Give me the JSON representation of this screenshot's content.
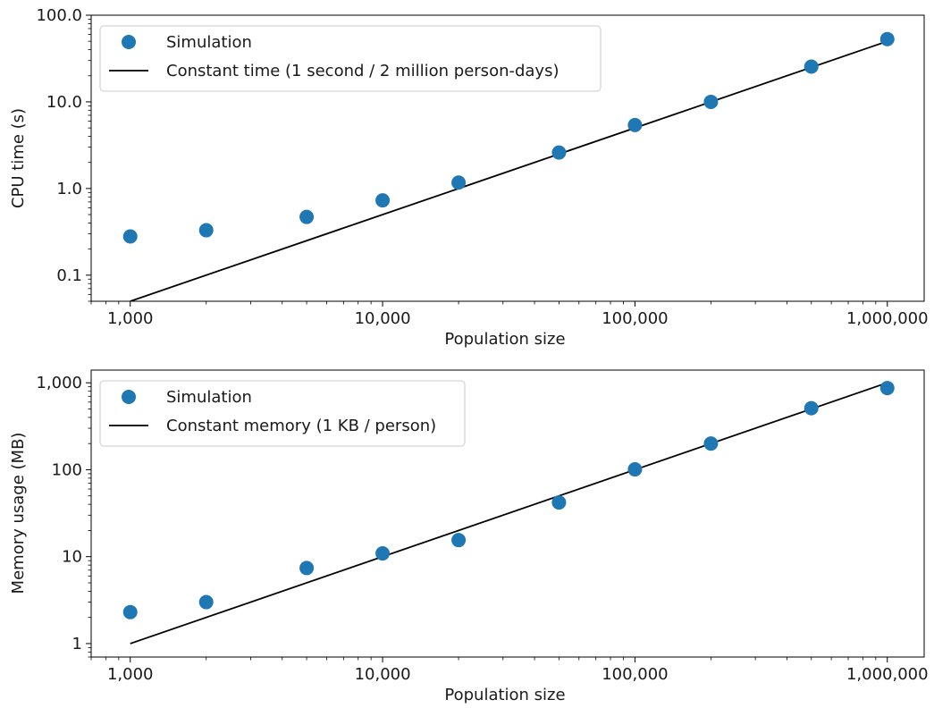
{
  "chart_data": [
    {
      "type": "scatter",
      "title": "",
      "xlabel": "Population size",
      "ylabel": "CPU time (s)",
      "xscale": "log",
      "yscale": "log",
      "xlim": [
        700,
        1400000
      ],
      "ylim": [
        0.05,
        100
      ],
      "xticks": [
        1000,
        10000,
        100000,
        1000000
      ],
      "xtick_labels": [
        "1,000",
        "10,000",
        "100,000",
        "1,000,000"
      ],
      "yticks": [
        0.1,
        1,
        10,
        100
      ],
      "ytick_labels": [
        "0.1",
        "1.0",
        "10.0",
        "100.0"
      ],
      "grid": false,
      "legend_position": "top-left",
      "series": [
        {
          "name": "Simulation",
          "kind": "markers",
          "color": "#1f77b4",
          "x": [
            1000,
            2000,
            5000,
            10000,
            20000,
            50000,
            100000,
            200000,
            500000,
            1000000
          ],
          "y": [
            0.28,
            0.33,
            0.47,
            0.73,
            1.17,
            2.6,
            5.4,
            10.0,
            25.5,
            53
          ]
        },
        {
          "name": "Constant time (1 second / 2 million person-days)",
          "kind": "line",
          "color": "#000000",
          "x": [
            1000,
            1000000
          ],
          "y": [
            0.05,
            50
          ]
        }
      ]
    },
    {
      "type": "scatter",
      "title": "",
      "xlabel": "Population size",
      "ylabel": "Memory usage (MB)",
      "xscale": "log",
      "yscale": "log",
      "xlim": [
        700,
        1400000
      ],
      "ylim": [
        0.7,
        1400
      ],
      "xticks": [
        1000,
        10000,
        100000,
        1000000
      ],
      "xtick_labels": [
        "1,000",
        "10,000",
        "100,000",
        "1,000,000"
      ],
      "yticks": [
        1,
        10,
        100,
        1000
      ],
      "ytick_labels": [
        "1",
        "10",
        "100",
        "1,000"
      ],
      "grid": false,
      "legend_position": "top-left",
      "series": [
        {
          "name": "Simulation",
          "kind": "markers",
          "color": "#1f77b4",
          "x": [
            1000,
            2000,
            5000,
            10000,
            20000,
            50000,
            100000,
            200000,
            500000,
            1000000
          ],
          "y": [
            2.3,
            3.0,
            7.4,
            10.9,
            15.5,
            42,
            101,
            200,
            510,
            870
          ]
        },
        {
          "name": "Constant memory (1 KB / person)",
          "kind": "line",
          "color": "#000000",
          "x": [
            1000,
            1000000
          ],
          "y": [
            1,
            1000
          ]
        }
      ]
    }
  ]
}
